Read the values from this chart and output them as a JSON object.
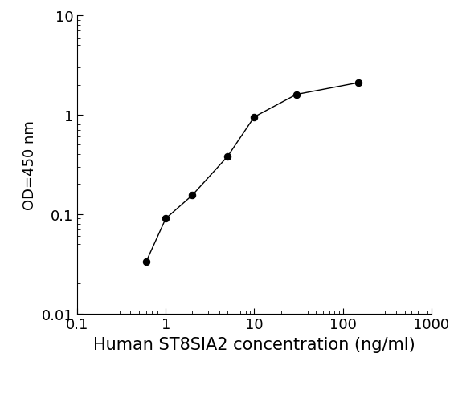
{
  "x": [
    0.6,
    1.0,
    2.0,
    5.0,
    10.0,
    30.0,
    150.0
  ],
  "y": [
    0.033,
    0.09,
    0.155,
    0.38,
    0.95,
    1.6,
    2.1
  ],
  "xlim": [
    0.1,
    1000
  ],
  "ylim": [
    0.01,
    10
  ],
  "xlabel": "Human ST8SIA2 concentration (ng/ml)",
  "ylabel": "OD=450 nm",
  "line_color": "#000000",
  "marker": "o",
  "marker_facecolor": "#000000",
  "marker_edgecolor": "#000000",
  "marker_size": 6,
  "line_width": 1.0,
  "xlabel_fontsize": 15,
  "ylabel_fontsize": 13,
  "tick_fontsize": 13,
  "background_color": "#ffffff",
  "fig_width": 5.65,
  "fig_height": 5.02,
  "xticks": [
    0.1,
    1,
    10,
    100,
    1000
  ],
  "xtick_labels": [
    "0.1",
    "1",
    "10",
    "100",
    "1000"
  ],
  "yticks": [
    0.01,
    0.1,
    1,
    10
  ],
  "ytick_labels": [
    "0.01",
    "0.1",
    "1",
    "10"
  ]
}
